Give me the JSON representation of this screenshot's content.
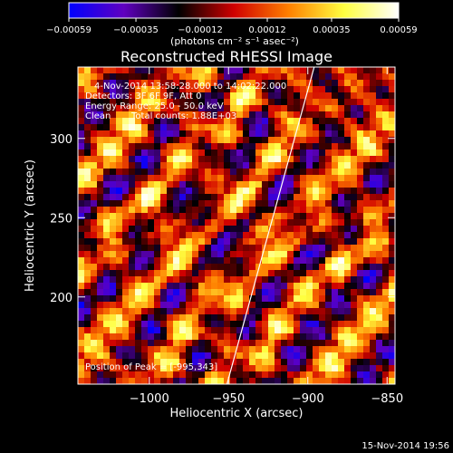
{
  "chart_data": {
    "type": "heatmap",
    "title": "Reconstructed RHESSI Image",
    "xlabel": "Heliocentric X (arcsec)",
    "ylabel": "Heliocentric Y (arcsec)",
    "xlim": [
      -1045,
      -845
    ],
    "ylim": [
      145,
      345
    ],
    "x_ticks": [
      -1000,
      -950,
      -900,
      -850
    ],
    "x_tick_labels": [
      "−1000",
      "−950",
      "−900",
      "−850"
    ],
    "y_ticks": [
      200,
      250,
      300
    ],
    "y_tick_labels": [
      "200",
      "250",
      "300"
    ],
    "colorbar": {
      "range": [
        -0.00059,
        0.00059
      ],
      "ticks": [
        -0.00059,
        -0.00035,
        -0.00012,
        0.00012,
        0.00035,
        0.00059
      ],
      "tick_labels": [
        "−0.00059",
        "−0.00035",
        "−0.00012",
        "0.00012",
        "0.00035",
        "0.00059"
      ],
      "units_label": "(photons cm⁻² s⁻¹ asec⁻²)",
      "colors": [
        "#0000ff",
        "#6000c0",
        "#000000",
        "#d00000",
        "#ff8000",
        "#ffff40",
        "#ffffff"
      ]
    },
    "annotations": {
      "time": "4-Nov-2014 13:58:28.000 to 14:02:22.000",
      "detectors": "Detectors: 3F 6F 9F, Att 0",
      "energy": "Energy Range: 25.0 - 50.0 keV",
      "clean": "Clean",
      "total_counts": "Total counts: 1.88E+03",
      "peak": "Position of Peak = [-995,343]"
    },
    "limb_line": {
      "x": [
        -951,
        -896
      ],
      "y": [
        145,
        345
      ]
    }
  },
  "footer": {
    "timestamp": "15-Nov-2014 19:56"
  }
}
